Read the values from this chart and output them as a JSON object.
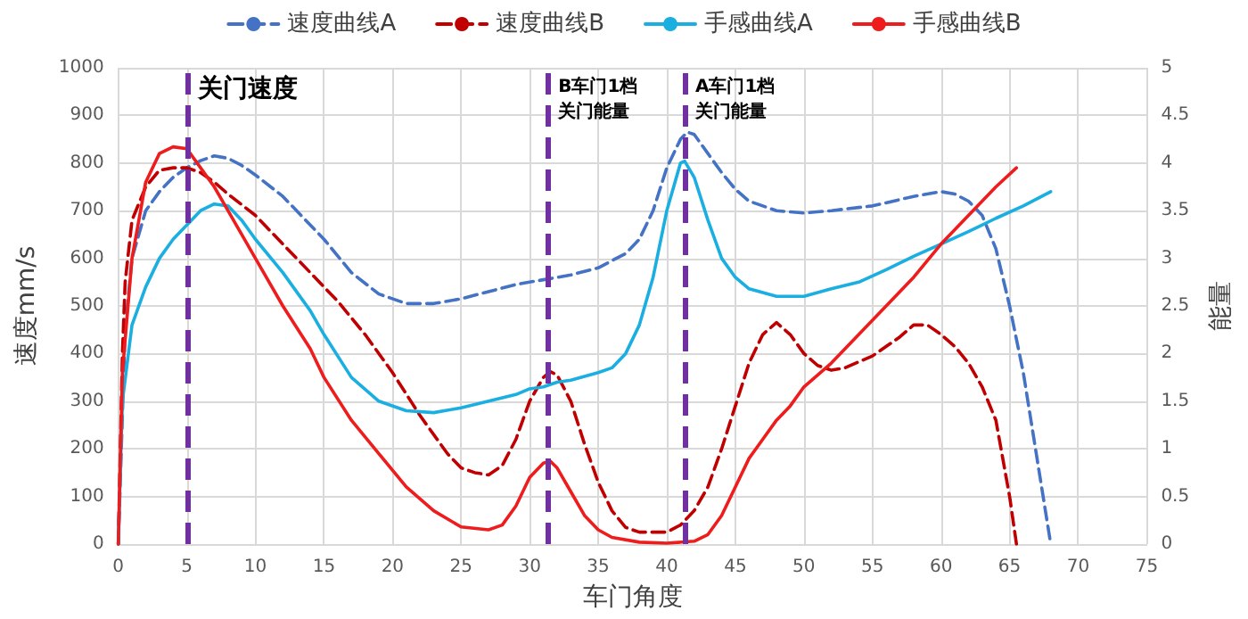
{
  "chart_data": {
    "type": "line",
    "xlabel": "车门角度",
    "ylabel": "速度mm/s",
    "y2label": "能量",
    "xlim": [
      0,
      75
    ],
    "xticks": [
      0,
      5,
      10,
      15,
      20,
      25,
      30,
      35,
      40,
      45,
      50,
      55,
      60,
      65,
      70,
      75
    ],
    "ylim": [
      0,
      1000
    ],
    "yticks": [
      0,
      100,
      200,
      300,
      400,
      500,
      600,
      700,
      800,
      900,
      1000
    ],
    "y2lim": [
      0,
      5
    ],
    "y2ticks": [
      0,
      0.5,
      1,
      1.5,
      2,
      2.5,
      3,
      3.5,
      4,
      4.5,
      5
    ],
    "grid": true,
    "legend": "top",
    "marker": "none",
    "series": [
      {
        "name": "速度曲线A",
        "color": "#4472c4",
        "line_style": "dashed",
        "x": [
          0,
          0.5,
          1,
          2,
          3,
          4,
          5,
          6,
          7,
          8,
          9,
          10,
          12,
          14,
          15,
          17,
          19,
          21,
          23,
          25,
          27,
          29,
          31,
          33,
          35,
          37,
          38,
          39,
          40,
          41,
          41.5,
          42,
          43,
          44,
          45,
          46,
          48,
          50,
          52,
          55,
          58,
          60,
          61,
          62,
          63,
          64,
          65,
          66,
          67,
          68
        ],
        "values": [
          0,
          450,
          600,
          700,
          740,
          770,
          790,
          805,
          815,
          810,
          795,
          775,
          730,
          670,
          640,
          570,
          525,
          505,
          505,
          515,
          530,
          545,
          555,
          565,
          580,
          610,
          640,
          700,
          790,
          850,
          865,
          860,
          820,
          780,
          745,
          720,
          700,
          695,
          700,
          710,
          730,
          740,
          735,
          720,
          690,
          620,
          500,
          360,
          180,
          0
        ]
      },
      {
        "name": "速度曲线B",
        "color": "#c00000",
        "line_style": "dashed",
        "x": [
          0,
          0.3,
          0.5,
          1,
          2,
          3,
          4,
          5,
          6,
          7,
          8,
          10,
          12,
          14,
          16,
          18,
          20,
          22,
          24,
          25,
          26,
          27,
          28,
          29,
          30,
          31,
          31.5,
          32,
          33,
          34,
          35,
          36,
          37,
          38,
          40,
          41,
          42,
          43,
          44,
          45,
          46,
          47,
          48,
          49,
          50,
          51,
          52,
          53,
          55,
          57,
          58,
          59,
          60,
          61,
          62,
          63,
          64,
          65,
          65.5
        ],
        "values": [
          0,
          400,
          550,
          680,
          750,
          785,
          790,
          790,
          780,
          760,
          735,
          690,
          630,
          570,
          510,
          440,
          360,
          270,
          190,
          160,
          150,
          145,
          165,
          220,
          300,
          350,
          362,
          355,
          300,
          210,
          130,
          70,
          35,
          25,
          25,
          40,
          70,
          120,
          200,
          290,
          380,
          440,
          465,
          440,
          400,
          375,
          365,
          370,
          395,
          435,
          460,
          460,
          440,
          415,
          380,
          330,
          260,
          100,
          0
        ]
      },
      {
        "name": "手感曲线A",
        "color": "#1aafe0",
        "line_style": "solid",
        "axis": "y2",
        "x": [
          0,
          0.3,
          1,
          2,
          3,
          4,
          5,
          6,
          7,
          8,
          9,
          10,
          12,
          14,
          15,
          17,
          19,
          21,
          23,
          25,
          27,
          29,
          30,
          31,
          32,
          33,
          35,
          36,
          37,
          38,
          39,
          40,
          41,
          41.3,
          42,
          43,
          44,
          45,
          46,
          48,
          50,
          52,
          54,
          56,
          58,
          60,
          62,
          64,
          66,
          68
        ],
        "values": [
          0,
          1.5,
          2.3,
          2.7,
          3.0,
          3.2,
          3.35,
          3.5,
          3.57,
          3.55,
          3.4,
          3.2,
          2.85,
          2.45,
          2.2,
          1.75,
          1.5,
          1.4,
          1.38,
          1.43,
          1.5,
          1.57,
          1.63,
          1.65,
          1.7,
          1.72,
          1.8,
          1.85,
          2.0,
          2.3,
          2.8,
          3.5,
          4.0,
          4.02,
          3.85,
          3.4,
          3.0,
          2.8,
          2.68,
          2.6,
          2.6,
          2.68,
          2.75,
          2.88,
          3.02,
          3.15,
          3.28,
          3.42,
          3.55,
          3.7
        ]
      },
      {
        "name": "手感曲线B",
        "color": "#ee1c1c",
        "line_style": "solid",
        "axis": "y2",
        "x": [
          0,
          0.3,
          1,
          2,
          3,
          4,
          5,
          6,
          7,
          8,
          9,
          10,
          12,
          14,
          15,
          17,
          19,
          21,
          23,
          25,
          27,
          28,
          29,
          30,
          31,
          31.5,
          32,
          33,
          34,
          35,
          36,
          38,
          40,
          42,
          43,
          44,
          45,
          46,
          47,
          48,
          49,
          50,
          52,
          54,
          56,
          58,
          60,
          62,
          64,
          65.5
        ],
        "values": [
          0,
          1.8,
          3.0,
          3.8,
          4.1,
          4.17,
          4.15,
          3.95,
          3.75,
          3.5,
          3.25,
          3.0,
          2.5,
          2.05,
          1.75,
          1.3,
          0.95,
          0.6,
          0.35,
          0.18,
          0.15,
          0.2,
          0.4,
          0.7,
          0.85,
          0.87,
          0.8,
          0.55,
          0.3,
          0.15,
          0.07,
          0.02,
          0.01,
          0.03,
          0.1,
          0.3,
          0.6,
          0.9,
          1.1,
          1.3,
          1.45,
          1.65,
          1.9,
          2.2,
          2.5,
          2.8,
          3.15,
          3.45,
          3.75,
          3.95
        ]
      }
    ],
    "ref_lines": [
      {
        "axis": "x",
        "value": 5,
        "label": "关门速度",
        "color": "#7030a0",
        "line_style": "dashed"
      },
      {
        "axis": "x",
        "value": 31.3,
        "label": "B车门1档关门能量",
        "color": "#7030a0",
        "line_style": "dashed"
      },
      {
        "axis": "x",
        "value": 41.3,
        "label": "A车门1档关门能量",
        "color": "#7030a0",
        "line_style": "dashed"
      }
    ]
  }
}
